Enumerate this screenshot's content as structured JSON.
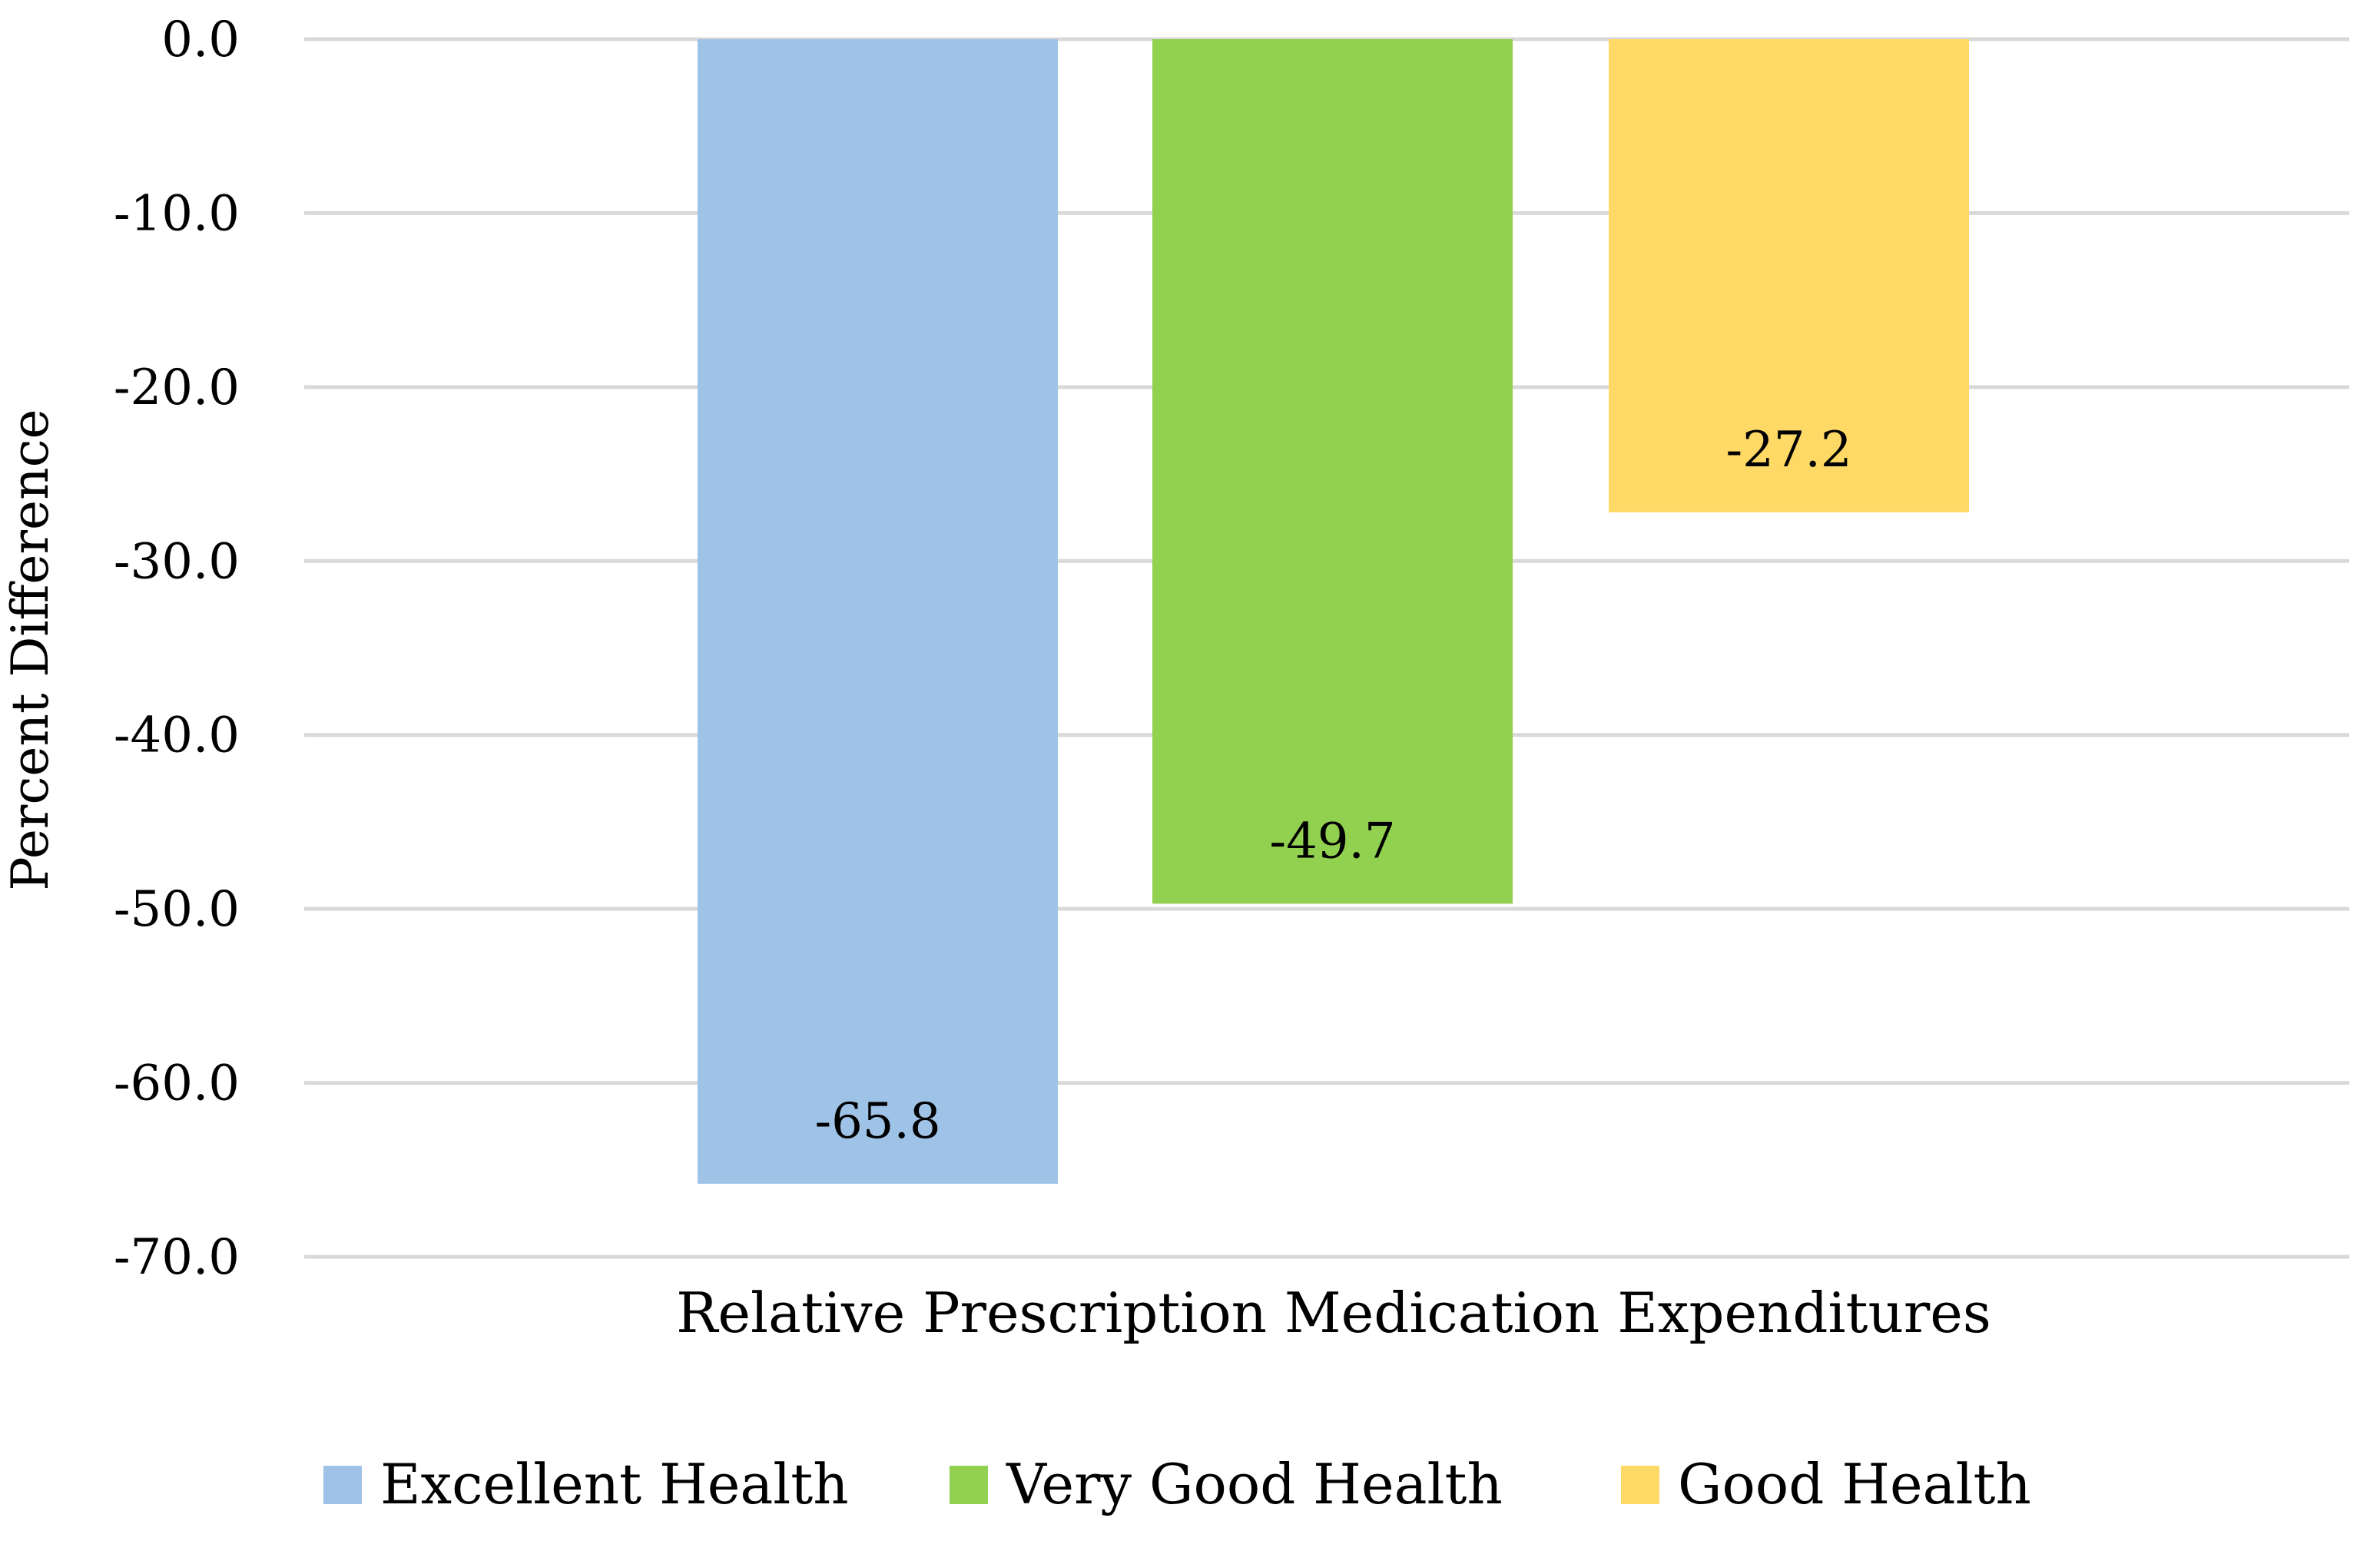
{
  "chart_data": {
    "type": "bar",
    "categories": [
      "Relative Prescription Medication Expenditures"
    ],
    "series": [
      {
        "name": "Excellent Health",
        "values": [
          -65.8
        ],
        "color": "#9fc3e6"
      },
      {
        "name": "Very Good Health",
        "values": [
          -49.7
        ],
        "color": "#92d050"
      },
      {
        "name": "Good Health",
        "values": [
          -27.2
        ],
        "color": "#ffd966"
      }
    ],
    "data_labels": [
      "-65.8",
      "-49.7",
      "-27.2"
    ],
    "title": "",
    "xlabel": "",
    "ylabel": "Percent Difference",
    "ylim": [
      -70,
      0
    ],
    "yticks": [
      0,
      -10,
      -20,
      -30,
      -40,
      -50,
      -60,
      -70
    ],
    "ytick_labels": [
      "0.0",
      "-10.0",
      "-20.0",
      "-30.0",
      "-40.0",
      "-50.0",
      "-60.0",
      "-70.0"
    ],
    "grid": true,
    "gridline_color": "#d9d9d9",
    "legend_position": "bottom"
  }
}
